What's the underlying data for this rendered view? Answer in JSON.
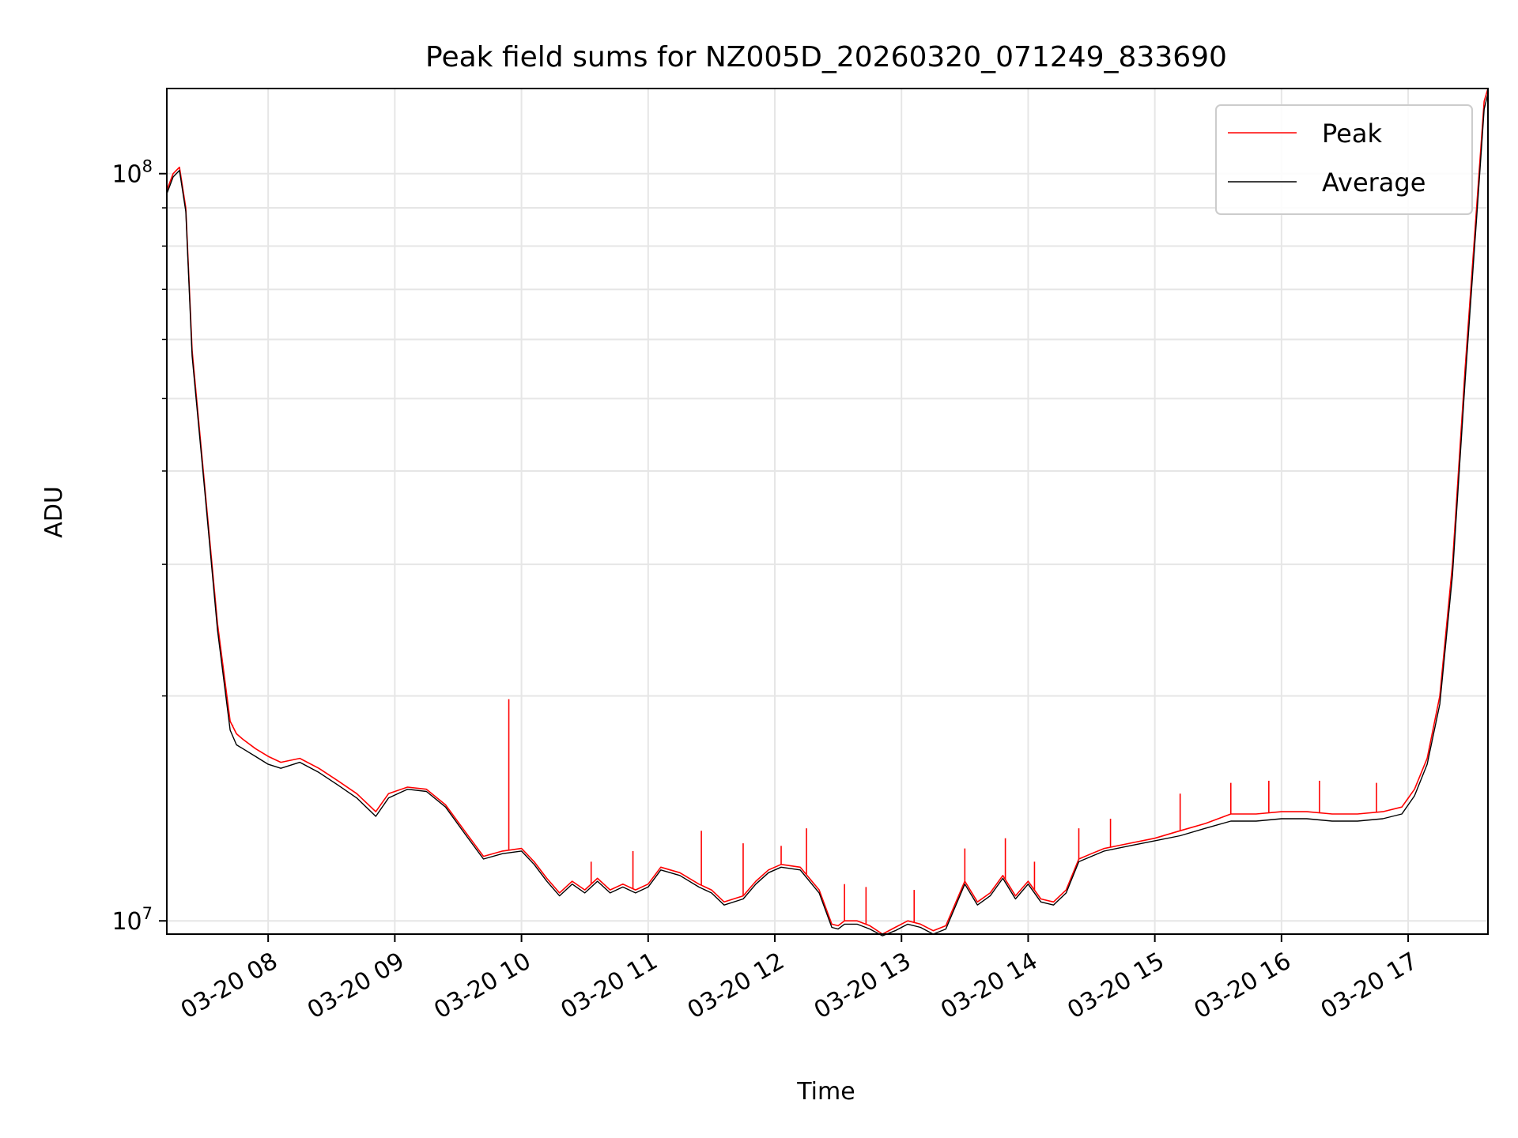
{
  "chart_data": {
    "type": "line",
    "title": "Peak field sums for NZ005D_20260320_071249_833690",
    "xlabel": "Time",
    "ylabel": "ADU",
    "yscale": "log",
    "xlim_hours": [
      7.2,
      17.63
    ],
    "ylim": [
      9600000,
      130000000
    ],
    "grid": true,
    "legend_position": "top-right",
    "x_ticks": [
      {
        "hour": 8,
        "label": "03-20 08"
      },
      {
        "hour": 9,
        "label": "03-20 09"
      },
      {
        "hour": 10,
        "label": "03-20 10"
      },
      {
        "hour": 11,
        "label": "03-20 11"
      },
      {
        "hour": 12,
        "label": "03-20 12"
      },
      {
        "hour": 13,
        "label": "03-20 13"
      },
      {
        "hour": 14,
        "label": "03-20 14"
      },
      {
        "hour": 15,
        "label": "03-20 15"
      },
      {
        "hour": 16,
        "label": "03-20 16"
      },
      {
        "hour": 17,
        "label": "03-20 17"
      }
    ],
    "y_ticks": [
      {
        "value": 10000000,
        "base": "10",
        "exp": "7"
      },
      {
        "value": 100000000,
        "base": "10",
        "exp": "8"
      }
    ],
    "series": [
      {
        "name": "Peak",
        "color": "#ff0000",
        "x_hours": [
          7.2,
          7.25,
          7.3,
          7.35,
          7.4,
          7.5,
          7.6,
          7.7,
          7.75,
          7.8,
          7.9,
          8.0,
          8.1,
          8.25,
          8.4,
          8.55,
          8.7,
          8.85,
          8.95,
          9.1,
          9.25,
          9.4,
          9.55,
          9.7,
          9.85,
          10.0,
          10.1,
          10.2,
          10.3,
          10.4,
          10.5,
          10.6,
          10.7,
          10.8,
          10.9,
          11.0,
          11.1,
          11.25,
          11.4,
          11.5,
          11.6,
          11.75,
          11.85,
          11.95,
          12.05,
          12.2,
          12.35,
          12.45,
          12.5,
          12.55,
          12.65,
          12.75,
          12.85,
          12.95,
          13.05,
          13.15,
          13.25,
          13.35,
          13.5,
          13.6,
          13.7,
          13.8,
          13.9,
          14.0,
          14.1,
          14.2,
          14.3,
          14.4,
          14.5,
          14.6,
          14.8,
          15.0,
          15.2,
          15.4,
          15.6,
          15.8,
          16.0,
          16.2,
          16.4,
          16.6,
          16.8,
          16.95,
          17.05,
          17.15,
          17.25,
          17.35,
          17.45,
          17.55,
          17.6,
          17.63
        ],
        "values": [
          95000000,
          100000000,
          102000000,
          90000000,
          58000000,
          38000000,
          25000000,
          18500000,
          17800000,
          17500000,
          17000000,
          16600000,
          16300000,
          16500000,
          16000000,
          15400000,
          14800000,
          14000000,
          14800000,
          15100000,
          15000000,
          14300000,
          13200000,
          12200000,
          12400000,
          12500000,
          12000000,
          11400000,
          10900000,
          11300000,
          11000000,
          11400000,
          11000000,
          11200000,
          11000000,
          11200000,
          11800000,
          11600000,
          11200000,
          11000000,
          10600000,
          10800000,
          11300000,
          11700000,
          11900000,
          11800000,
          11000000,
          9900000,
          9850000,
          10000000,
          10000000,
          9850000,
          9600000,
          9800000,
          10000000,
          9900000,
          9700000,
          9850000,
          11300000,
          10600000,
          10900000,
          11500000,
          10800000,
          11300000,
          10700000,
          10600000,
          11000000,
          12100000,
          12300000,
          12500000,
          12700000,
          12900000,
          13200000,
          13500000,
          13900000,
          13900000,
          14000000,
          14000000,
          13900000,
          13900000,
          14000000,
          14200000,
          15000000,
          16500000,
          20000000,
          30000000,
          55000000,
          95000000,
          125000000,
          130000000
        ],
        "spikes": [
          {
            "hour": 7.72,
            "value": 18300000
          },
          {
            "hour": 9.9,
            "value": 19800000
          },
          {
            "hour": 10.55,
            "value": 12000000
          },
          {
            "hour": 10.88,
            "value": 12400000
          },
          {
            "hour": 11.42,
            "value": 13200000
          },
          {
            "hour": 11.75,
            "value": 12700000
          },
          {
            "hour": 12.05,
            "value": 12600000
          },
          {
            "hour": 12.25,
            "value": 13300000
          },
          {
            "hour": 12.55,
            "value": 11200000
          },
          {
            "hour": 12.72,
            "value": 11100000
          },
          {
            "hour": 13.1,
            "value": 11000000
          },
          {
            "hour": 13.5,
            "value": 12500000
          },
          {
            "hour": 13.82,
            "value": 12900000
          },
          {
            "hour": 14.05,
            "value": 12000000
          },
          {
            "hour": 14.4,
            "value": 13300000
          },
          {
            "hour": 14.65,
            "value": 13700000
          },
          {
            "hour": 15.2,
            "value": 14800000
          },
          {
            "hour": 15.6,
            "value": 15300000
          },
          {
            "hour": 15.9,
            "value": 15400000
          },
          {
            "hour": 16.3,
            "value": 15400000
          },
          {
            "hour": 16.75,
            "value": 15300000
          }
        ]
      },
      {
        "name": "Average",
        "color": "#000000",
        "x_hours": [
          7.2,
          7.25,
          7.3,
          7.35,
          7.4,
          7.5,
          7.6,
          7.7,
          7.75,
          7.8,
          7.9,
          8.0,
          8.1,
          8.25,
          8.4,
          8.55,
          8.7,
          8.85,
          8.95,
          9.1,
          9.25,
          9.4,
          9.55,
          9.7,
          9.85,
          10.0,
          10.1,
          10.2,
          10.3,
          10.4,
          10.5,
          10.6,
          10.7,
          10.8,
          10.9,
          11.0,
          11.1,
          11.25,
          11.4,
          11.5,
          11.6,
          11.75,
          11.85,
          11.95,
          12.05,
          12.2,
          12.35,
          12.45,
          12.5,
          12.55,
          12.65,
          12.75,
          12.85,
          12.95,
          13.05,
          13.15,
          13.25,
          13.35,
          13.5,
          13.6,
          13.7,
          13.8,
          13.9,
          14.0,
          14.1,
          14.2,
          14.3,
          14.4,
          14.5,
          14.6,
          14.8,
          15.0,
          15.2,
          15.4,
          15.6,
          15.8,
          16.0,
          16.2,
          16.4,
          16.6,
          16.8,
          16.95,
          17.05,
          17.15,
          17.25,
          17.35,
          17.45,
          17.55,
          17.6,
          17.63
        ],
        "values": [
          94000000,
          99000000,
          101000000,
          89000000,
          57000000,
          37500000,
          24500000,
          18000000,
          17200000,
          17000000,
          16600000,
          16200000,
          16000000,
          16300000,
          15800000,
          15200000,
          14600000,
          13800000,
          14600000,
          15000000,
          14900000,
          14200000,
          13100000,
          12100000,
          12300000,
          12400000,
          11900000,
          11300000,
          10800000,
          11200000,
          10900000,
          11300000,
          10900000,
          11100000,
          10900000,
          11100000,
          11700000,
          11500000,
          11100000,
          10900000,
          10500000,
          10700000,
          11200000,
          11600000,
          11800000,
          11700000,
          10900000,
          9800000,
          9750000,
          9900000,
          9900000,
          9750000,
          9550000,
          9700000,
          9900000,
          9800000,
          9600000,
          9750000,
          11200000,
          10500000,
          10800000,
          11400000,
          10700000,
          11200000,
          10600000,
          10500000,
          10900000,
          12000000,
          12200000,
          12400000,
          12600000,
          12800000,
          13000000,
          13300000,
          13600000,
          13600000,
          13700000,
          13700000,
          13600000,
          13600000,
          13700000,
          13900000,
          14700000,
          16200000,
          19500000,
          29000000,
          53000000,
          92000000,
          122000000,
          128000000
        ]
      }
    ]
  }
}
